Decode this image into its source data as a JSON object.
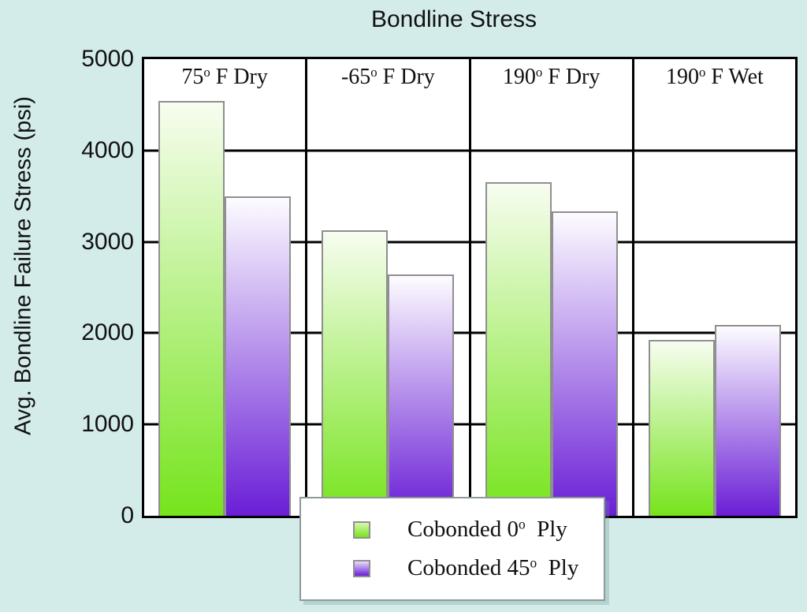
{
  "title": "Bondline Stress",
  "y_axis": {
    "label": "Avg. Bondline Failure Stress (psi)",
    "ticks": [
      "5000",
      "4000",
      "3000",
      "2000",
      "1000",
      "0"
    ]
  },
  "panels": [
    {
      "label": {
        "prefix": "75",
        "sup": "o",
        "suffix": " F Dry"
      }
    },
    {
      "label": {
        "prefix": "-65",
        "sup": "o",
        "suffix": " F Dry"
      }
    },
    {
      "label": {
        "prefix": "190",
        "sup": "o",
        "suffix": " F Dry"
      }
    },
    {
      "label": {
        "prefix": "190",
        "sup": "o",
        "suffix": " F Wet"
      }
    }
  ],
  "legend": {
    "items": [
      {
        "swatch": "green-gradient-swatch",
        "label": {
          "prefix": "Cobonded 0",
          "sup": "o",
          "suffix": "  Ply"
        }
      },
      {
        "swatch": "purple-gradient-swatch",
        "label": {
          "prefix": "Cobonded 45",
          "sup": "o",
          "suffix": "  Ply"
        }
      }
    ]
  },
  "colors": {
    "bg": "#d3ecea",
    "plot-bg": "#ffffff",
    "line": "#000000",
    "text": "#111111",
    "bar-border": "#8f8f8f",
    "green-top": "#f7fdf0",
    "green-bottom": "#76e41c",
    "purple-top": "#fdfcff",
    "purple-bottom": "#6a1ed6"
  },
  "chart_data": {
    "type": "bar",
    "title": "Bondline Stress",
    "xlabel": "",
    "ylabel": "Avg. Bondline Failure Stress (psi)",
    "ylim": [
      0,
      5000
    ],
    "ytick_interval": 1000,
    "grid": true,
    "legend_position": "bottom-center-overlapping-plot",
    "categories": [
      "75° F Dry",
      "-65° F Dry",
      "190° F Dry",
      "190° F Wet"
    ],
    "series": [
      {
        "name": "Cobonded 0° Ply",
        "style": "vertical-gradient-white-to-green",
        "values": [
          4540,
          3130,
          3650,
          1930
        ]
      },
      {
        "name": "Cobonded 45° Ply",
        "style": "vertical-gradient-white-to-purple",
        "values": [
          3500,
          2640,
          3330,
          2090
        ]
      }
    ]
  }
}
